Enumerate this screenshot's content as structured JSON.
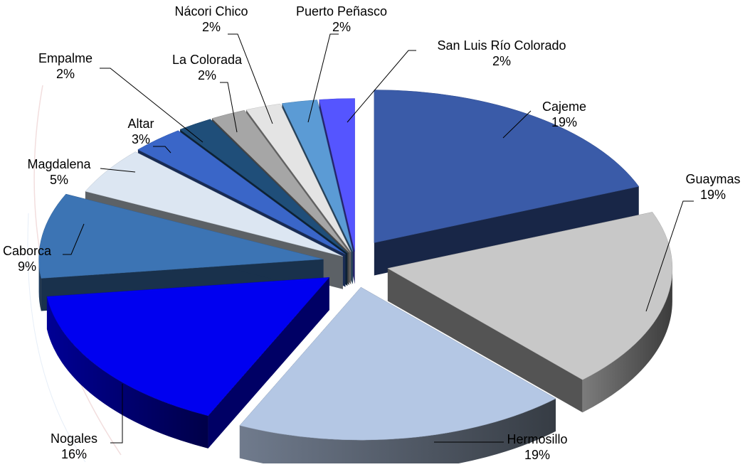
{
  "chart_data": {
    "type": "pie",
    "style": "3d-exploded",
    "title": "",
    "slices": [
      {
        "label": "Cajeme",
        "percent_label": "19%",
        "value": 19,
        "color": "#3A5BA8"
      },
      {
        "label": "Guaymas",
        "percent_label": "19%",
        "value": 19,
        "color": "#C8C8C8"
      },
      {
        "label": "Hermosillo",
        "percent_label": "19%",
        "value": 19,
        "color": "#B4C7E4"
      },
      {
        "label": "Nogales",
        "percent_label": "16%",
        "value": 16,
        "color": "#0000F0"
      },
      {
        "label": "Caborca",
        "percent_label": "9%",
        "value": 9,
        "color": "#3C74B4"
      },
      {
        "label": "Magdalena",
        "percent_label": "5%",
        "value": 5,
        "color": "#DCE6F2"
      },
      {
        "label": "Altar",
        "percent_label": "3%",
        "value": 3,
        "color": "#3A66C8"
      },
      {
        "label": "Empalme",
        "percent_label": "2%",
        "value": 2,
        "color": "#1F4E79"
      },
      {
        "label": "La Colorada",
        "percent_label": "2%",
        "value": 2,
        "color": "#A6A6A6"
      },
      {
        "label": "Nácori Chico",
        "percent_label": "2%",
        "value": 2,
        "color": "#E4E4E4"
      },
      {
        "label": "Puerto Peñasco",
        "percent_label": "2%",
        "value": 2,
        "color": "#5B9BD5"
      },
      {
        "label": "San Luis Río Colorado",
        "percent_label": "2%",
        "value": 2,
        "color": "#5555FF"
      }
    ]
  }
}
